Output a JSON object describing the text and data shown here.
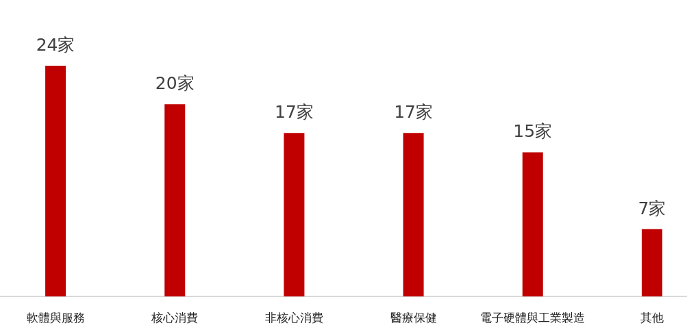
{
  "chart_data": {
    "type": "bar",
    "categories": [
      "軟體與服務",
      "核心消費",
      "非核心消費",
      "醫療保健",
      "電子硬體與工業製造",
      "其他"
    ],
    "values": [
      24,
      20,
      17,
      17,
      15,
      7
    ],
    "value_labels": [
      "24家",
      "20家",
      "17家",
      "17家",
      "15家",
      "7家"
    ],
    "color": "#c00000"
  }
}
